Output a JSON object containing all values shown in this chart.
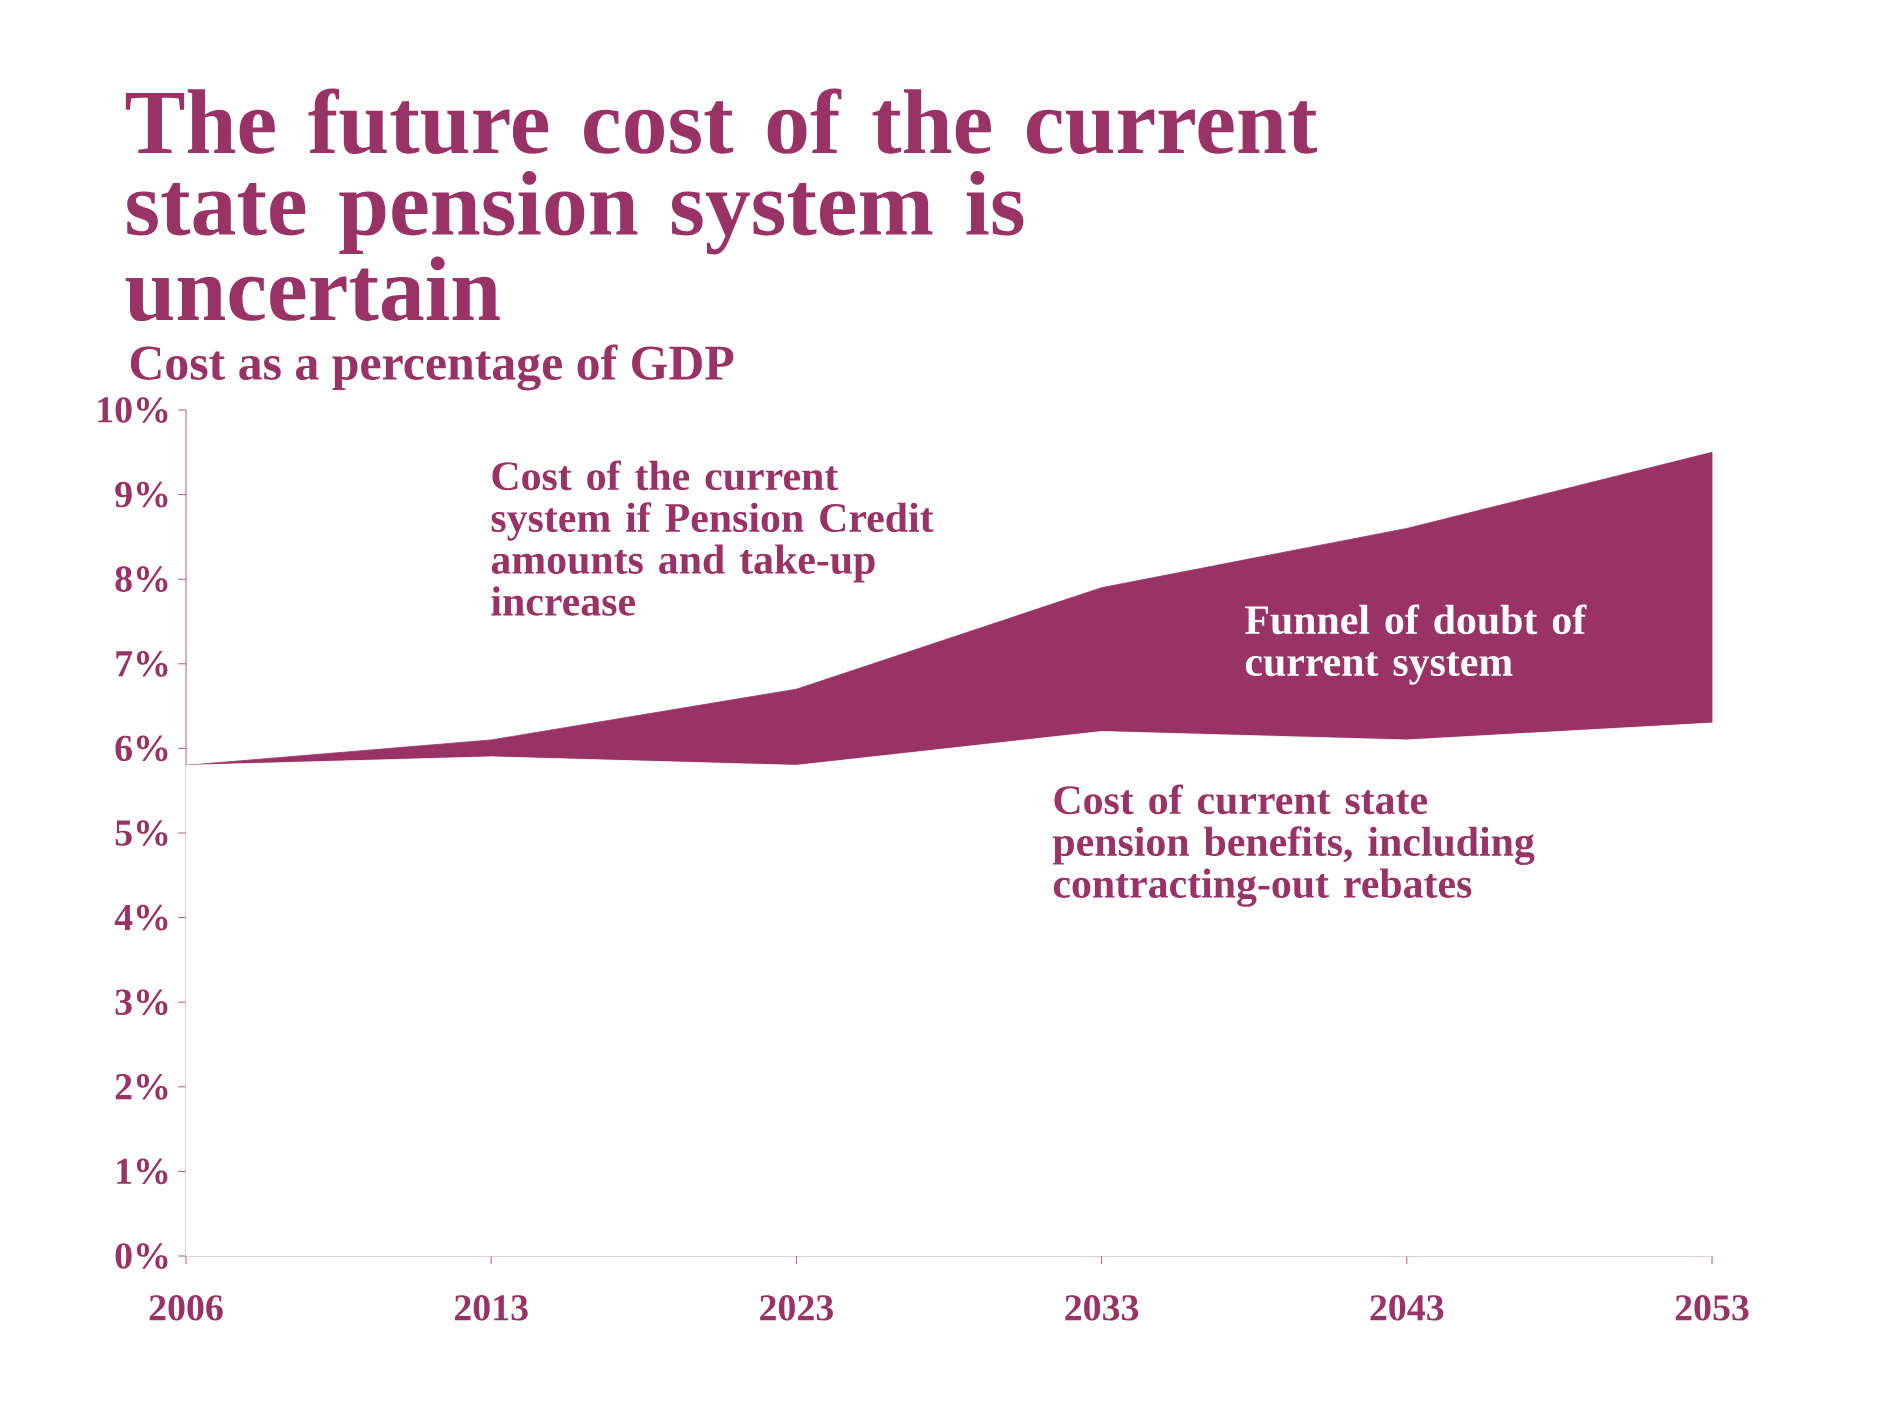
{
  "chart_data": {
    "type": "area",
    "title": "The future cost of the current state pension system is uncertain",
    "subtitle": "Cost as a percentage of GDP",
    "categories": [
      "2006",
      "2013",
      "2023",
      "2033",
      "2043",
      "2053"
    ],
    "series": [
      {
        "color": "#ffffff",
        "values": [
          5.8,
          5.9,
          5.8,
          6.2,
          6.1,
          6.3
        ]
      },
      {
        "color": "#993366",
        "values": [
          0,
          0.2,
          0.9,
          1.7,
          2.5,
          3.2
        ]
      }
    ],
    "stacked": true,
    "ylim": [
      0,
      10
    ],
    "yticks": [
      {
        "value": 0,
        "label": "0%"
      },
      {
        "value": 1,
        "label": "1%"
      },
      {
        "value": 2,
        "label": "2%"
      },
      {
        "value": 3,
        "label": "3%"
      },
      {
        "value": 4,
        "label": "4%"
      },
      {
        "value": 5,
        "label": "5%"
      },
      {
        "value": 6,
        "label": "6%"
      },
      {
        "value": 7,
        "label": "7%"
      },
      {
        "value": 8,
        "label": "8%"
      },
      {
        "value": 9,
        "label": "9%"
      },
      {
        "value": 10,
        "label": "10%"
      }
    ],
    "annotations": [
      "Cost of the current system if Pension Credit amounts and take-up increase",
      "Funnel of doubt of current system",
      "Cost of current state pension benefits, including contracting-out rebates"
    ],
    "grid": false
  }
}
